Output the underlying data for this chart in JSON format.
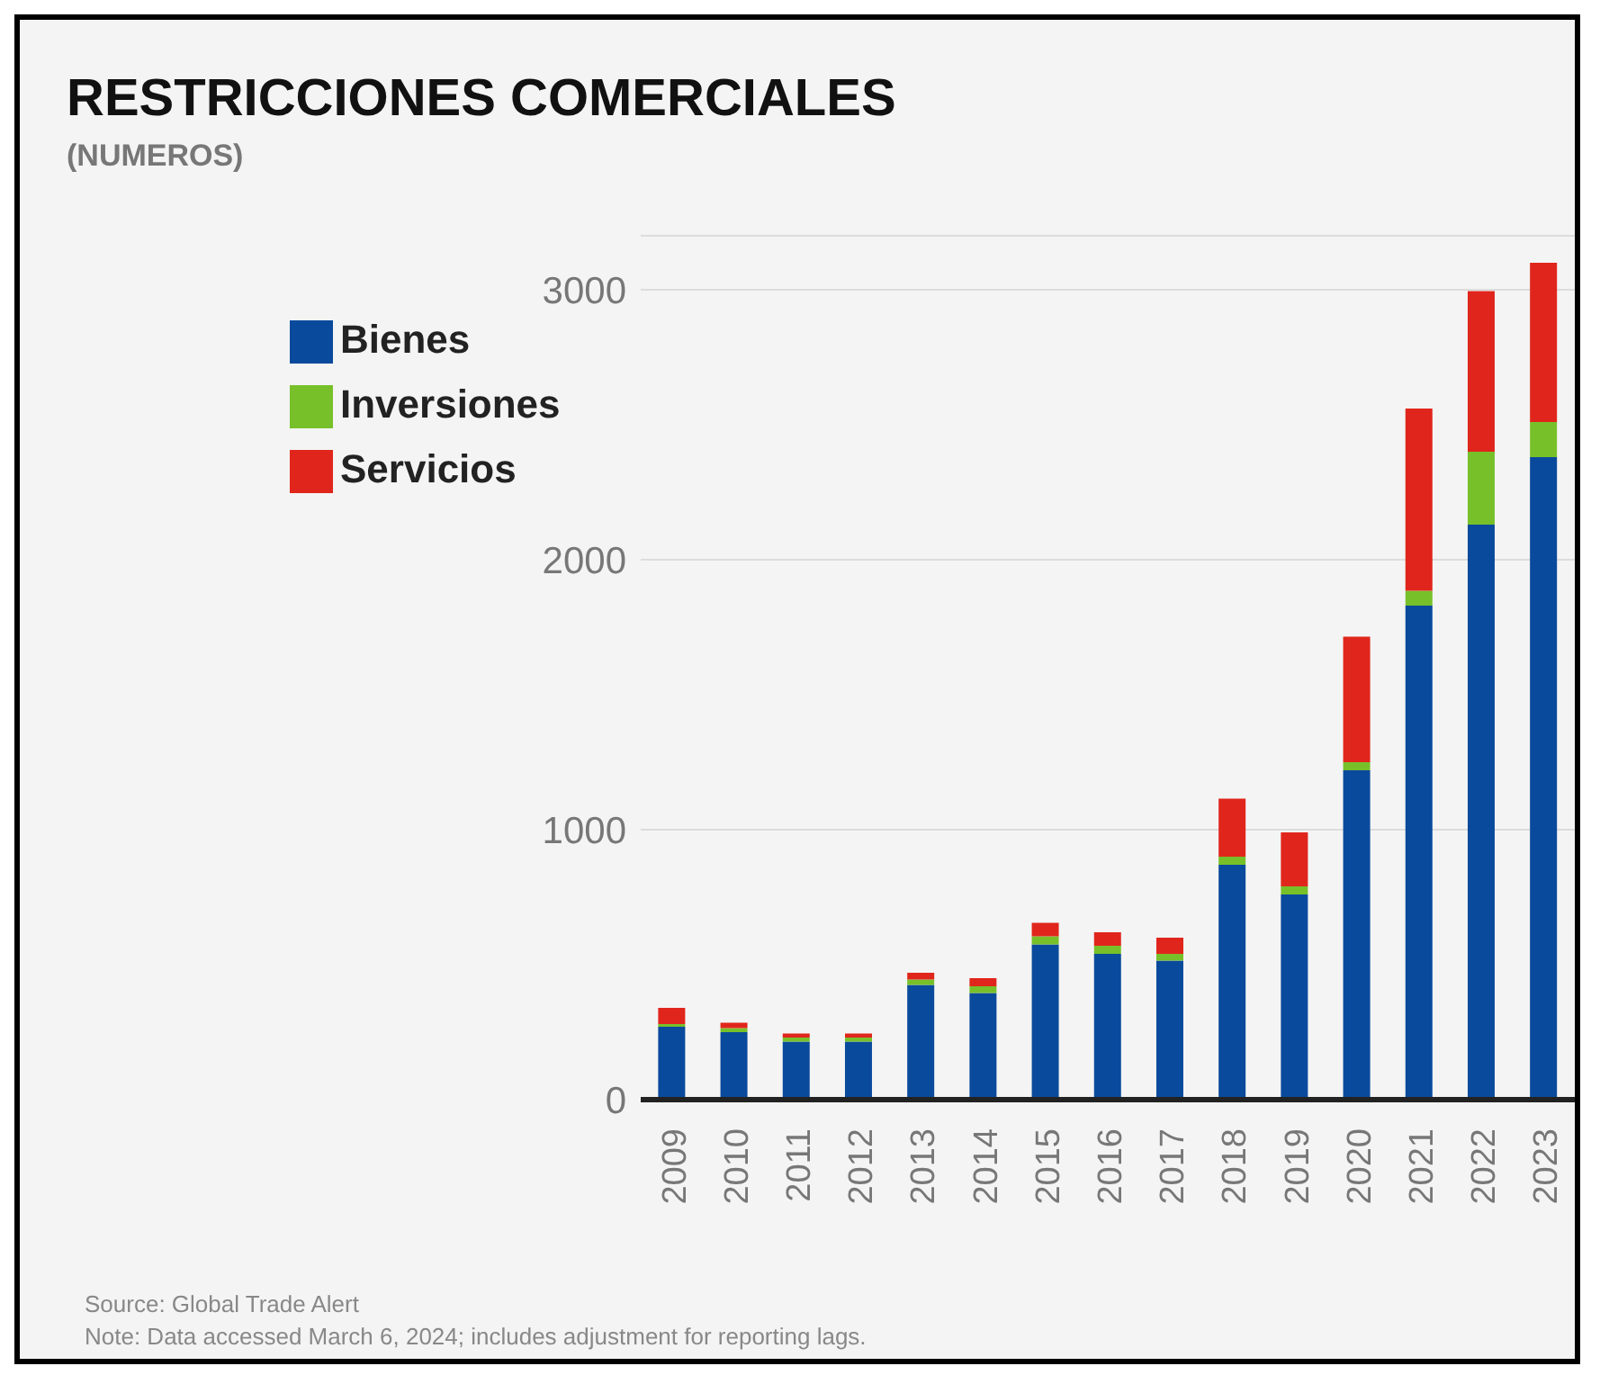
{
  "chart_data": {
    "type": "bar",
    "title": "RESTRICCIONES COMERCIALES",
    "subtitle": "(NUMEROS)",
    "categories": [
      "2009",
      "2010",
      "2011",
      "2012",
      "2013",
      "2014",
      "2015",
      "2016",
      "2017",
      "2018",
      "2019",
      "2020",
      "2021",
      "2022",
      "2023"
    ],
    "series": [
      {
        "name": "Bienes",
        "color": "#0a4a9c",
        "values": [
          270,
          250,
          215,
          215,
          425,
          395,
          575,
          540,
          515,
          870,
          760,
          1220,
          1830,
          2130,
          2380
        ]
      },
      {
        "name": "Inversiones",
        "color": "#77c02a",
        "values": [
          10,
          15,
          15,
          15,
          20,
          25,
          30,
          30,
          25,
          30,
          30,
          30,
          55,
          270,
          130
        ]
      },
      {
        "name": "Servicios",
        "color": "#e0261c",
        "values": [
          60,
          20,
          15,
          15,
          25,
          30,
          50,
          50,
          60,
          215,
          200,
          465,
          675,
          595,
          590
        ]
      }
    ],
    "stacked": true,
    "ylim": [
      0,
      3200
    ],
    "yticks": [
      0,
      1000,
      2000,
      3000
    ],
    "grid": "y",
    "legend": "top left",
    "annotations": [
      "Source: Global Trade Alert",
      "Note: Data accessed March 6, 2024; includes adjustment for reporting lags."
    ]
  }
}
